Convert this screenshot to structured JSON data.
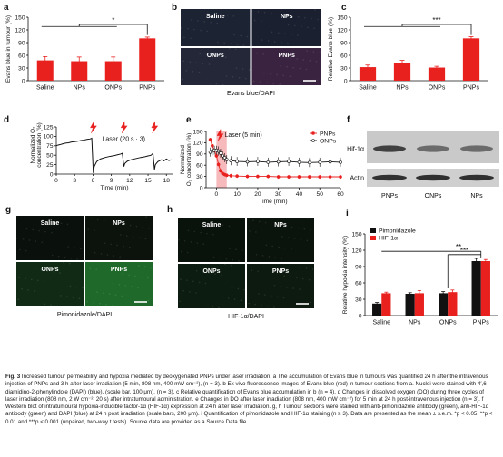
{
  "colors": {
    "red": "#e8211f",
    "grey": "#9a9a9a",
    "dark_bg": "#1b1f2a",
    "green_dark": "#0c140e",
    "green_bright": "#1f6a2a"
  },
  "panels": {
    "a": {
      "letter": "a",
      "chart_data": {
        "type": "bar",
        "categories": [
          "Saline",
          "NPs",
          "ONPs",
          "PNPs"
        ],
        "values": [
          48,
          46,
          46,
          100
        ],
        "errors": [
          9,
          10,
          10,
          3
        ],
        "ylabel": "Evans blue in tumour (%)",
        "ylim": [
          0,
          150
        ],
        "yticks": [
          "0",
          "30",
          "60",
          "90",
          "120",
          "150"
        ],
        "annotation": "*"
      }
    },
    "b": {
      "letter": "b",
      "labels": [
        "Saline",
        "NPs",
        "ONPs",
        "PNPs"
      ],
      "caption": "Evans blue/DAPI"
    },
    "c": {
      "letter": "c",
      "chart_data": {
        "type": "bar",
        "categories": [
          "Saline",
          "NPs",
          "ONPs",
          "PNPs"
        ],
        "values": [
          32,
          41,
          31,
          100
        ],
        "errors": [
          5,
          7,
          3,
          4
        ],
        "ylabel": "Relative Evans blue (%)",
        "ylim": [
          0,
          150
        ],
        "yticks": [
          "0",
          "30",
          "60",
          "90",
          "120",
          "150"
        ],
        "annotation": "***"
      }
    },
    "d": {
      "letter": "d",
      "chart_data": {
        "type": "line",
        "xlabel": "Time (min)",
        "ylabel": "Normalized O₂ concentration (%)",
        "xlim": [
          0,
          19
        ],
        "ylim": [
          0,
          125
        ],
        "xticks": [
          "0",
          "3",
          "6",
          "9",
          "12",
          "15",
          "18"
        ],
        "yticks": [
          "0",
          "25",
          "50",
          "75",
          "100",
          "125"
        ],
        "annotation": "Laser (20 s · 3)",
        "laser_times": [
          6,
          11,
          16
        ],
        "series": [
          {
            "x": [
              0,
              0.3,
              0.6,
              1,
              1.5,
              2,
              2.5,
              3,
              3.5,
              4,
              4.5,
              5,
              5.5,
              5.8,
              6.05,
              6.2,
              6.6,
              7.2,
              8,
              8.8,
              9.5,
              10,
              10.5,
              10.8,
              11.05,
              11.2,
              11.6,
              12.2,
              13,
              13.8,
              14.5,
              15,
              15.5,
              15.8,
              16.05,
              16.2,
              16.6,
              17.2,
              17.6,
              18,
              18.4,
              18.8
            ],
            "y": [
              75,
              77,
              78,
              80,
              82,
              83,
              85,
              86,
              87,
              89,
              90,
              92,
              93,
              95,
              3,
              20,
              33,
              40,
              44,
              47,
              49,
              51,
              53,
              55,
              20,
              28,
              34,
              38,
              41,
              44,
              46,
              48,
              50,
              55,
              12,
              25,
              33,
              38,
              35,
              40,
              36,
              38
            ]
          }
        ]
      }
    },
    "e": {
      "letter": "e",
      "chart_data": {
        "type": "line",
        "xlabel": "Time (min)",
        "ylabel": "Normalized O₂ concentration (%)",
        "xlim": [
          -5,
          60
        ],
        "ylim": [
          0,
          150
        ],
        "xticks": [
          "0",
          "10",
          "20",
          "30",
          "40",
          "50",
          "60"
        ],
        "yticks": [
          "0",
          "30",
          "60",
          "90",
          "120",
          "150"
        ],
        "annotation": "Laser (5 min)",
        "laser_window": [
          0,
          5
        ],
        "legend": [
          "PNPs",
          "ONPs"
        ],
        "series": [
          {
            "name": "PNPs",
            "x": [
              -3,
              -2,
              -1,
              0,
              1,
              2,
              3,
              4,
              5,
              7,
              10,
              15,
              20,
              25,
              30,
              35,
              40,
              45,
              50,
              55,
              60
            ],
            "y": [
              128,
              112,
              100,
              85,
              62,
              45,
              38,
              35,
              33,
              32,
              31,
              30,
              30,
              30,
              29,
              29,
              29,
              29,
              29,
              29,
              29
            ]
          },
          {
            "name": "ONPs",
            "x": [
              -3,
              -2,
              -1,
              0,
              1,
              2,
              3,
              4,
              5,
              7,
              10,
              15,
              20,
              25,
              30,
              35,
              40,
              45,
              50,
              55,
              60
            ],
            "y": [
              95,
              98,
              100,
              100,
              98,
              92,
              85,
              80,
              75,
              72,
              70,
              69,
              70,
              68,
              69,
              70,
              68,
              67,
              68,
              69,
              68
            ]
          }
        ]
      }
    },
    "f": {
      "letter": "f",
      "rows": [
        "Hif-1α",
        "Actin"
      ],
      "columns": [
        "PNPs",
        "ONPs",
        "NPs"
      ]
    },
    "g": {
      "letter": "g",
      "labels": [
        "Saline",
        "NPs",
        "ONPs",
        "PNPs"
      ],
      "caption": "Pimonidazole/DAPI"
    },
    "h": {
      "letter": "h",
      "labels": [
        "Saline",
        "NPs",
        "ONPs",
        "PNPs"
      ],
      "caption": "HIF-1α/DAPI"
    },
    "i": {
      "letter": "i",
      "chart_data": {
        "type": "bar",
        "categories": [
          "Saline",
          "NPs",
          "ONPs",
          "PNPs"
        ],
        "series": [
          {
            "name": "Pimonidazole",
            "values": [
              22,
              40,
              41,
              100
            ],
            "errors": [
              2,
              2,
              3,
              5
            ]
          },
          {
            "name": "HIF-1α",
            "values": [
              41,
              41,
              43,
              100
            ],
            "errors": [
              2,
              5,
              4,
              3
            ]
          }
        ],
        "ylabel": "Relative hypoxia intensity (%)",
        "ylim": [
          0,
          150
        ],
        "yticks": [
          "0",
          "30",
          "60",
          "90",
          "120",
          "150"
        ],
        "annotations": [
          "**",
          "***"
        ]
      }
    }
  },
  "caption": {
    "title": "Fig. 3",
    "text": "Increased tumour permeability and hypoxia mediated by deoxygenated PNPs under laser irradiation. a The accumulation of Evans blue in tumours was quantified 24 h after the intravenous injection of PNPs and 3 h after laser irradiation (5 min, 808 nm, 400 mW cm⁻²), (n = 3). b Ex vivo fluorescence images of Evans blue (red) in tumour sections from a. Nuclei were stained with 4′,6-diamidino-2-phenylindole (DAPI) (blue), (scale bar, 100 μm), (n = 3). c Relative quantification of Evans blue accumulation in b (n = 4). d Changes in dissolved oxygen (DO) during three cycles of laser irradiation (808 nm, 2 W cm⁻², 20 s) after intratumoural administration. e Changes in DO after laser irradiation (808 nm, 400 mW cm⁻²) for 5 min at 24 h post-intravenous injection (n = 3). f Western blot of intratumoural hypoxia-inducible factor-1α (HIF-1α) expression at 24 h after laser irradiation. g, h Tumour sections were stained with anti-pimonidazole antibody (green), anti-HIF-1α antibody (green) and DAPI (blue) at 24 h post irradiation (scale bars, 200 μm). i Quantification of pimonidazole and HIF-1α staining (n ≥ 3). Data are presented as the mean ± s.e.m. *p < 0.05, **p < 0.01 and ***p < 0.001 (unpaired, two-way t tests). Source data are provided as a Source Data file"
  }
}
